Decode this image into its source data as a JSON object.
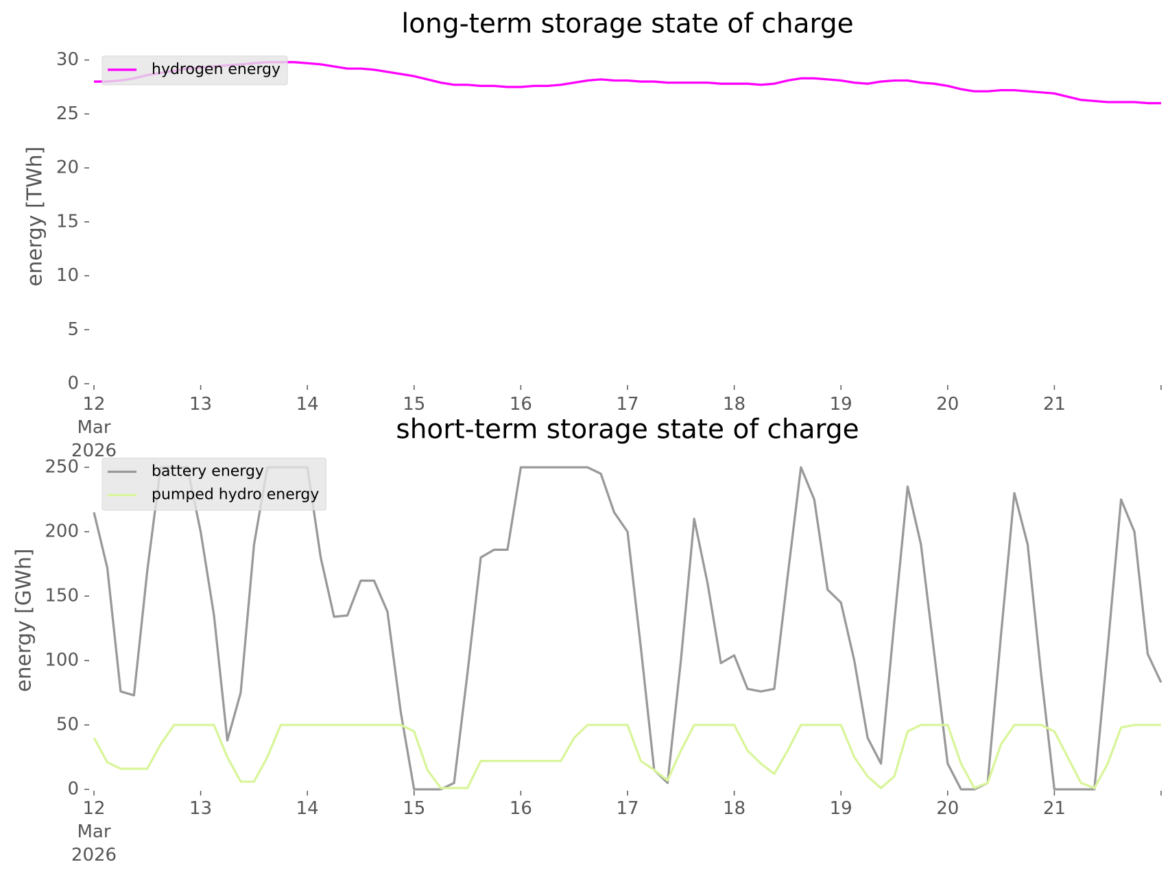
{
  "chart_data": [
    {
      "type": "line",
      "title": "long-term storage state of charge",
      "ylabel": "energy [TWh]",
      "x": [
        12,
        12.125,
        12.25,
        12.375,
        12.5,
        12.625,
        12.75,
        12.875,
        13,
        13.125,
        13.25,
        13.375,
        13.5,
        13.625,
        13.75,
        13.875,
        14,
        14.125,
        14.25,
        14.375,
        14.5,
        14.625,
        14.75,
        14.875,
        15,
        15.125,
        15.25,
        15.375,
        15.5,
        15.625,
        15.75,
        15.875,
        16,
        16.125,
        16.25,
        16.375,
        16.5,
        16.625,
        16.75,
        16.875,
        17,
        17.125,
        17.25,
        17.375,
        17.5,
        17.625,
        17.75,
        17.875,
        18,
        18.125,
        18.25,
        18.375,
        18.5,
        18.625,
        18.75,
        18.875,
        19,
        19.125,
        19.25,
        19.375,
        19.5,
        19.625,
        19.75,
        19.875,
        20,
        20.125,
        20.25,
        20.375,
        20.5,
        20.625,
        20.75,
        20.875,
        21,
        21.125,
        21.25,
        21.375,
        21.5,
        21.625,
        21.75,
        21.875,
        22
      ],
      "series": [
        {
          "name": "hydrogen energy",
          "color": "#ff00ff",
          "values": [
            28.0,
            28.0,
            28.1,
            28.3,
            28.6,
            28.8,
            29.0,
            29.2,
            29.3,
            29.4,
            29.5,
            29.6,
            29.7,
            29.8,
            29.8,
            29.8,
            29.7,
            29.6,
            29.4,
            29.2,
            29.2,
            29.1,
            28.9,
            28.7,
            28.5,
            28.2,
            27.9,
            27.7,
            27.7,
            27.6,
            27.6,
            27.5,
            27.5,
            27.6,
            27.6,
            27.7,
            27.9,
            28.1,
            28.2,
            28.1,
            28.1,
            28.0,
            28.0,
            27.9,
            27.9,
            27.9,
            27.9,
            27.8,
            27.8,
            27.8,
            27.7,
            27.8,
            28.1,
            28.3,
            28.3,
            28.2,
            28.1,
            27.9,
            27.8,
            28.0,
            28.1,
            28.1,
            27.9,
            27.8,
            27.6,
            27.3,
            27.1,
            27.1,
            27.2,
            27.2,
            27.1,
            27.0,
            26.9,
            26.6,
            26.3,
            26.2,
            26.1,
            26.1,
            26.1,
            26.0,
            26.0
          ]
        }
      ],
      "xlim": [
        12,
        22
      ],
      "ylim": [
        0,
        31
      ],
      "xticks": [
        {
          "value": 12,
          "label": "12\nMar\n2026"
        },
        13,
        14,
        15,
        16,
        17,
        18,
        19,
        20,
        21
      ],
      "yticks": [
        0,
        5,
        10,
        15,
        20,
        25,
        30
      ],
      "legend": "upper left",
      "grid": false
    },
    {
      "type": "line",
      "title": "short-term storage state of charge",
      "ylabel": "energy [GWh]",
      "x": [
        12,
        12.125,
        12.25,
        12.375,
        12.5,
        12.625,
        12.75,
        12.875,
        13,
        13.125,
        13.25,
        13.375,
        13.5,
        13.625,
        13.75,
        13.875,
        14,
        14.125,
        14.25,
        14.375,
        14.5,
        14.625,
        14.75,
        14.875,
        15,
        15.125,
        15.25,
        15.375,
        15.5,
        15.625,
        15.75,
        15.875,
        16,
        16.125,
        16.25,
        16.375,
        16.5,
        16.625,
        16.75,
        16.875,
        17,
        17.125,
        17.25,
        17.375,
        17.5,
        17.625,
        17.75,
        17.875,
        18,
        18.125,
        18.25,
        18.375,
        18.5,
        18.625,
        18.75,
        18.875,
        19,
        19.125,
        19.25,
        19.375,
        19.5,
        19.625,
        19.75,
        19.875,
        20,
        20.125,
        20.25,
        20.375,
        20.5,
        20.625,
        20.75,
        20.875,
        21,
        21.125,
        21.25,
        21.375,
        21.5,
        21.625,
        21.75,
        21.875,
        22
      ],
      "series": [
        {
          "name": "battery energy",
          "color": "#999999",
          "values": [
            215,
            172,
            76,
            73,
            170,
            250,
            250,
            250,
            200,
            135,
            38,
            75,
            190,
            250,
            250,
            250,
            250,
            180,
            134,
            135,
            162,
            162,
            138,
            60,
            0,
            0,
            0,
            5,
            90,
            180,
            186,
            186,
            250,
            250,
            250,
            250,
            250,
            250,
            245,
            215,
            200,
            110,
            15,
            5,
            100,
            210,
            160,
            98,
            104,
            78,
            76,
            78,
            165,
            250,
            225,
            155,
            145,
            100,
            40,
            20,
            130,
            235,
            190,
            105,
            20,
            0,
            0,
            5,
            120,
            230,
            190,
            90,
            0,
            0,
            0,
            0,
            110,
            225,
            200,
            105,
            83
          ]
        },
        {
          "name": "pumped hydro energy",
          "color": "#d9f59a",
          "values": [
            40,
            21,
            16,
            16,
            16,
            35,
            50,
            50,
            50,
            50,
            25,
            6,
            6,
            25,
            50,
            50,
            50,
            50,
            50,
            50,
            50,
            50,
            50,
            50,
            45,
            15,
            1,
            1,
            1,
            22,
            22,
            22,
            22,
            22,
            22,
            22,
            40,
            50,
            50,
            50,
            50,
            22,
            15,
            7,
            30,
            50,
            50,
            50,
            50,
            30,
            20,
            12,
            30,
            50,
            50,
            50,
            50,
            25,
            10,
            1,
            10,
            45,
            50,
            50,
            50,
            20,
            1,
            5,
            35,
            50,
            50,
            50,
            45,
            25,
            5,
            1,
            20,
            48,
            50,
            50,
            50
          ]
        }
      ],
      "xlim": [
        12,
        22
      ],
      "ylim": [
        0,
        262.5
      ],
      "xticks": [
        {
          "value": 12,
          "label": "12\nMar\n2026"
        },
        13,
        14,
        15,
        16,
        17,
        18,
        19,
        20,
        21
      ],
      "yticks": [
        0,
        50,
        100,
        150,
        200,
        250
      ],
      "legend": "upper left",
      "grid": false
    }
  ]
}
